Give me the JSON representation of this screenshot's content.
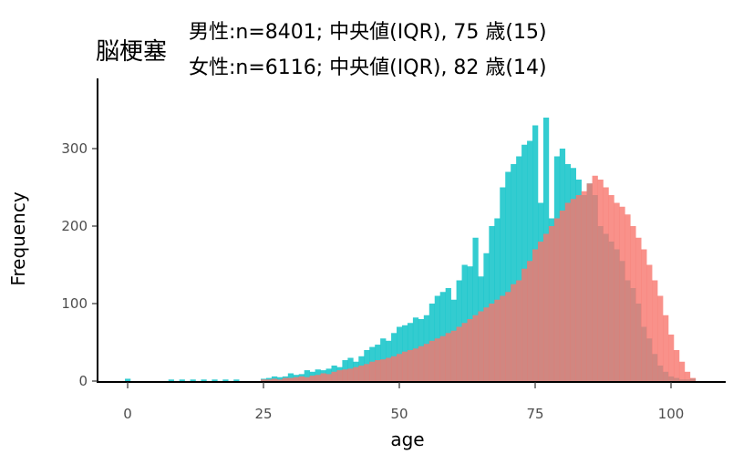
{
  "chart_data": {
    "type": "bar",
    "title": "脳梗塞",
    "subtitle_lines": [
      "男性:n=8401; 中央値(IQR), 75 歳(15)",
      "女性:n=6116; 中央値(IQR), 82 歳(14)"
    ],
    "xlabel": "age",
    "ylabel": "Frequency",
    "xlim": [
      -5,
      110
    ],
    "ylim": [
      0,
      350
    ],
    "x_ticks": [
      0,
      25,
      50,
      75,
      100
    ],
    "y_ticks": [
      0,
      100,
      200,
      300
    ],
    "bin_width": 1,
    "grid": false,
    "legend": "none",
    "colors": {
      "男性": "#00BFC4",
      "女性": "#F8766D"
    },
    "series": [
      {
        "key": "male",
        "color": "#00BFC4",
        "x": [
          0,
          8,
          10,
          12,
          14,
          16,
          18,
          20,
          25,
          26,
          27,
          28,
          29,
          30,
          31,
          32,
          33,
          34,
          35,
          36,
          37,
          38,
          39,
          40,
          41,
          42,
          43,
          44,
          45,
          46,
          47,
          48,
          49,
          50,
          51,
          52,
          53,
          54,
          55,
          56,
          57,
          58,
          59,
          60,
          61,
          62,
          63,
          64,
          65,
          66,
          67,
          68,
          69,
          70,
          71,
          72,
          73,
          74,
          75,
          76,
          77,
          78,
          79,
          80,
          81,
          82,
          83,
          84,
          85,
          86,
          87,
          88,
          89,
          90,
          91,
          92,
          93,
          94,
          95,
          96,
          97,
          98,
          99,
          100,
          101,
          102,
          103,
          104
        ],
        "values": [
          3,
          2,
          2,
          2,
          2,
          2,
          2,
          2,
          3,
          4,
          6,
          5,
          6,
          10,
          8,
          9,
          14,
          12,
          15,
          14,
          16,
          20,
          18,
          27,
          30,
          25,
          32,
          40,
          44,
          47,
          55,
          52,
          62,
          70,
          72,
          75,
          82,
          80,
          85,
          100,
          110,
          115,
          120,
          105,
          130,
          150,
          148,
          185,
          135,
          165,
          200,
          210,
          250,
          270,
          280,
          290,
          305,
          310,
          330,
          230,
          340,
          210,
          290,
          300,
          280,
          275,
          260,
          240,
          255,
          240,
          200,
          190,
          180,
          170,
          155,
          130,
          120,
          100,
          70,
          55,
          35,
          20,
          12,
          6,
          4,
          2,
          2,
          3
        ]
      },
      {
        "key": "female",
        "color": "#F8766D",
        "x": [
          25,
          26,
          27,
          28,
          29,
          30,
          31,
          32,
          33,
          34,
          35,
          36,
          37,
          38,
          39,
          40,
          41,
          42,
          43,
          44,
          45,
          46,
          47,
          48,
          49,
          50,
          51,
          52,
          53,
          54,
          55,
          56,
          57,
          58,
          59,
          60,
          61,
          62,
          63,
          64,
          65,
          66,
          67,
          68,
          69,
          70,
          71,
          72,
          73,
          74,
          75,
          76,
          77,
          78,
          79,
          80,
          81,
          82,
          83,
          84,
          85,
          86,
          87,
          88,
          89,
          90,
          91,
          92,
          93,
          94,
          95,
          96,
          97,
          98,
          99,
          100,
          101,
          102,
          103,
          104
        ],
        "values": [
          2,
          2,
          3,
          2,
          4,
          4,
          5,
          6,
          5,
          7,
          8,
          10,
          9,
          12,
          14,
          15,
          16,
          18,
          20,
          22,
          25,
          27,
          28,
          30,
          32,
          35,
          38,
          40,
          42,
          45,
          48,
          52,
          55,
          58,
          62,
          65,
          70,
          75,
          80,
          85,
          90,
          95,
          100,
          105,
          110,
          115,
          125,
          130,
          145,
          155,
          170,
          180,
          190,
          200,
          210,
          220,
          230,
          235,
          240,
          245,
          255,
          265,
          260,
          250,
          240,
          230,
          225,
          215,
          200,
          185,
          170,
          150,
          130,
          110,
          85,
          60,
          40,
          25,
          12,
          4
        ]
      }
    ]
  }
}
